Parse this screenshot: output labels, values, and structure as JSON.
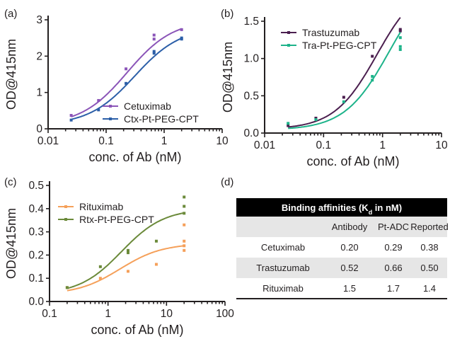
{
  "chart_data": [
    {
      "type": "scatter",
      "panel_label": "(a)",
      "xlabel": "conc. of Ab (nM)",
      "ylabel": "OD@415nm",
      "xscale": "log",
      "xlim": [
        0.01,
        10
      ],
      "ylim": [
        0,
        3
      ],
      "x_ticks": [
        0.01,
        0.1,
        1,
        10
      ],
      "x_tick_labels": [
        "0.01",
        "0.1",
        "1",
        "10"
      ],
      "y_ticks": [
        0,
        1,
        2,
        3
      ],
      "y_tick_labels": [
        "0",
        "1",
        "2",
        "3"
      ],
      "legend_position": "lower-right",
      "series": [
        {
          "name": "Cetuximab",
          "color": "#8b55b8",
          "points": [
            [
              0.025,
              0.37
            ],
            [
              0.074,
              0.78
            ],
            [
              0.22,
              1.65
            ],
            [
              0.67,
              2.58
            ],
            [
              0.67,
              2.47
            ],
            [
              2.0,
              2.73
            ]
          ],
          "fit": {
            "bottom": 0.1,
            "top": 3.0,
            "ec50": 0.23,
            "hill": 1.1
          }
        },
        {
          "name": "Ctx-Pt-PEG-CPT",
          "color": "#2c5fa8",
          "points": [
            [
              0.025,
              0.24
            ],
            [
              0.074,
              0.52
            ],
            [
              0.22,
              1.25
            ],
            [
              0.67,
              2.13
            ],
            [
              0.67,
              2.08
            ],
            [
              2.0,
              2.47
            ],
            [
              2.0,
              2.5
            ]
          ],
          "fit": {
            "bottom": 0.1,
            "top": 2.8,
            "ec50": 0.31,
            "hill": 1.1
          }
        }
      ]
    },
    {
      "type": "scatter",
      "panel_label": "(b)",
      "xlabel": "conc. of Ab (nM)",
      "ylabel": "OD@415nm",
      "xscale": "log",
      "xlim": [
        0.01,
        10
      ],
      "ylim": [
        0,
        1.5
      ],
      "x_ticks": [
        0.01,
        0.1,
        1,
        10
      ],
      "x_tick_labels": [
        "0.01",
        "0.1",
        "1",
        "10"
      ],
      "y_ticks": [
        0,
        0.5,
        1.0,
        1.5
      ],
      "y_tick_labels": [
        "0.0",
        "0.5",
        "1.0",
        "1.5"
      ],
      "legend_position": "top-left",
      "series": [
        {
          "name": "Trastuzumab",
          "color": "#4b1f4f",
          "points": [
            [
              0.025,
              0.1
            ],
            [
              0.074,
              0.2
            ],
            [
              0.22,
              0.48
            ],
            [
              0.67,
              1.03
            ],
            [
              2.0,
              1.39
            ],
            [
              2.0,
              1.37
            ]
          ],
          "fit": {
            "bottom": 0.05,
            "top": 2.05,
            "ec50": 0.8,
            "hill": 1.2
          }
        },
        {
          "name": "Tra-Pt-PEG-CPT",
          "color": "#1db38a",
          "points": [
            [
              0.025,
              0.13
            ],
            [
              0.074,
              0.18
            ],
            [
              0.22,
              0.42
            ],
            [
              0.67,
              0.76
            ],
            [
              0.67,
              0.71
            ],
            [
              2.0,
              1.28
            ],
            [
              2.0,
              1.16
            ],
            [
              2.0,
              1.12
            ]
          ],
          "fit": {
            "bottom": 0.04,
            "top": 2.15,
            "ec50": 1.3,
            "hill": 1.15
          }
        }
      ]
    },
    {
      "type": "scatter",
      "panel_label": "(c)",
      "xlabel": "conc. of Ab (nM)",
      "ylabel": "OD@415nm",
      "xscale": "log",
      "xlim": [
        0.1,
        100
      ],
      "ylim": [
        0,
        0.5
      ],
      "x_ticks": [
        0.1,
        1,
        10,
        100
      ],
      "x_tick_labels": [
        "0.1",
        "1",
        "10",
        "100"
      ],
      "y_ticks": [
        0,
        0.1,
        0.2,
        0.3,
        0.4,
        0.5
      ],
      "y_tick_labels": [
        "0.0",
        "0.1",
        "0.2",
        "0.3",
        "0.4",
        "0.5"
      ],
      "legend_position": "top-left",
      "series": [
        {
          "name": "Rituximab",
          "color": "#f5a05a",
          "points": [
            [
              0.2,
              0.06
            ],
            [
              0.74,
              0.1
            ],
            [
              2.2,
              0.13
            ],
            [
              6.7,
              0.16
            ],
            [
              20,
              0.33
            ],
            [
              20,
              0.26
            ],
            [
              20,
              0.24
            ],
            [
              20,
              0.22
            ]
          ],
          "fit": {
            "bottom": 0.03,
            "top": 0.25,
            "ec50": 1.6,
            "hill": 1.2
          }
        },
        {
          "name": "Rtx-Pt-PEG-CPT",
          "color": "#6b8a3a",
          "points": [
            [
              0.2,
              0.06
            ],
            [
              0.74,
              0.15
            ],
            [
              2.2,
              0.22
            ],
            [
              2.2,
              0.21
            ],
            [
              6.7,
              0.26
            ],
            [
              20,
              0.45
            ],
            [
              20,
              0.41
            ],
            [
              20,
              0.38
            ]
          ],
          "fit": {
            "bottom": 0.03,
            "top": 0.4,
            "ec50": 1.7,
            "hill": 1.2
          }
        }
      ]
    },
    {
      "type": "table",
      "panel_label": "(d)",
      "title": "Binding affinities (K",
      "title_subscript": "d",
      "title_suffix": " in nM)",
      "header_color": "#000000",
      "alt_row_color": "#e6e6e6",
      "columns": [
        "",
        "Antibody",
        "Pt-ADC",
        "Reported"
      ],
      "rows": [
        [
          "Cetuximab",
          "0.20",
          "0.29",
          "0.38"
        ],
        [
          "Trastuzumab",
          "0.52",
          "0.66",
          "0.50"
        ],
        [
          "Rituximab",
          "1.5",
          "1.7",
          "1.4"
        ]
      ]
    }
  ]
}
